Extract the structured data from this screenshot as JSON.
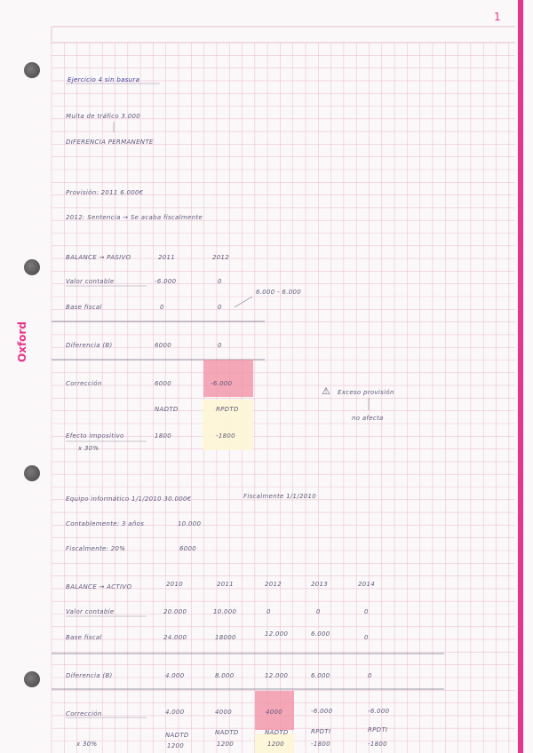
{
  "page_number": "1",
  "brand": "Oxford",
  "colors": {
    "grid": "#e9b9cb",
    "margin": "#e6358a",
    "ink": "#5e5a7c",
    "highlight_red": "#f28ea0",
    "highlight_yellow": "#fdf6d6"
  },
  "section1": {
    "title": "Ejercicio 4 sin basura",
    "multa_line": "Multa de tráfico 3.000",
    "diferencias_line": "DIFERENCIA PERMANENTE",
    "provision_line": "Provisión: 2011 6.000€",
    "year_line": "2012: Sentencia → Se acaba fiscalmente",
    "balance_header": {
      "label": "BALANCE → PASIVO",
      "col1": "2011",
      "col2": "2012"
    },
    "rows": [
      {
        "label": "Valor contable",
        "v1": "-6.000",
        "v2": "0"
      },
      {
        "label": "Base fiscal",
        "v1": "0",
        "v2": "0"
      },
      {
        "label": "Diferencia (B)",
        "v1": "6000",
        "v2": "0"
      },
      {
        "label": "Corrección",
        "v1": "6000",
        "v2": "-6.000"
      }
    ],
    "arrow_note": "6.000 - 6.000",
    "naming": {
      "a": "NADTD",
      "b": "RPDTD"
    },
    "efecto": {
      "label": "Efecto impositivo",
      "sub": "x 30%",
      "v1": "1800",
      "v2": "-1800"
    },
    "warning": {
      "line1": "Exceso provisión",
      "line2": "no afecta"
    }
  },
  "section2": {
    "equipo_line": "Equipo informático 1/1/2010 30.000€",
    "fiscal_date": "Fiscalmente 1/1/2010",
    "contable_line": "Contablemente: 3 años",
    "contable_value": "10.000",
    "fiscal_line": "Fiscalmente: 20%",
    "fiscal_value": "6000",
    "balance_header": {
      "label": "BALANCE → ACTIVO",
      "years": [
        "2010",
        "2011",
        "2012",
        "2013",
        "2014"
      ]
    },
    "rows": [
      {
        "label": "Valor contable",
        "values": [
          "20.000",
          "10.000",
          "0",
          "0",
          "0"
        ]
      },
      {
        "label": "Base fiscal",
        "values": [
          "24.000",
          "18000",
          "12.000",
          "6.000",
          "0"
        ]
      },
      {
        "label": "Diferencia (B)",
        "values": [
          "4.000",
          "8.000",
          "12.000",
          "6.000",
          "0"
        ]
      },
      {
        "label": "Corrección",
        "values": [
          "4.000",
          "4000",
          "4000",
          "-6.000",
          "-6.000"
        ]
      }
    ],
    "naming_row": [
      "NADTD",
      "NADTD",
      "NADTD",
      "RPDTI",
      "RPDTI"
    ],
    "efecto_row": {
      "label": "x 30%",
      "values": [
        "1200",
        "1200",
        "1200",
        "-1800",
        "-1800"
      ]
    }
  }
}
